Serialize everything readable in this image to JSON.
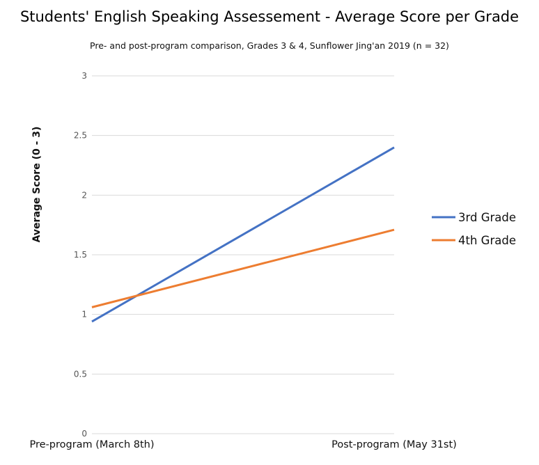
{
  "chart_data": {
    "type": "line",
    "title": "Students' English Speaking Assessement - Average Score per Grade",
    "subtitle": "Pre- and post-program comparison, Grades 3 & 4, Sunflower Jing'an 2019 (n = 32)",
    "xlabel": "",
    "ylabel": "Average Score (0 - 3)",
    "categories": [
      "Pre-program (March 8th)",
      "Post-program (May 31st)"
    ],
    "series": [
      {
        "name": "3rd Grade",
        "color": "#4472c4",
        "values": [
          0.94,
          2.4
        ]
      },
      {
        "name": "4th Grade",
        "color": "#ed7d31",
        "values": [
          1.06,
          1.71
        ]
      }
    ],
    "ylim": [
      0,
      3
    ],
    "yticks": [
      "0",
      "0.5",
      "1",
      "1.5",
      "2",
      "2.5",
      "3"
    ],
    "grid": true,
    "legend_position": "right"
  }
}
